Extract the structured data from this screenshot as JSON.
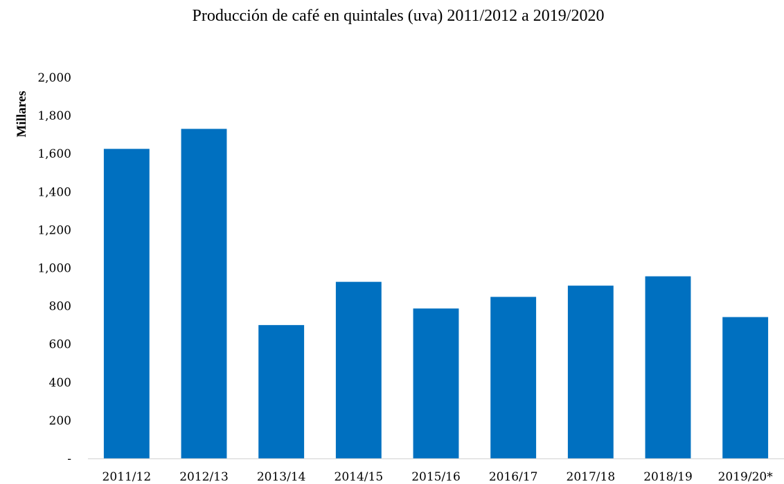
{
  "chart_data": {
    "type": "bar",
    "title": "Producción de café en quintales (uva) 2011/2012 a 2019/2020",
    "xlabel": "",
    "ylabel": "Millares",
    "categories": [
      "2011/12",
      "2012/13",
      "2013/14",
      "2014/15",
      "2015/16",
      "2016/17",
      "2017/18",
      "2018/19",
      "2019/20*"
    ],
    "values": [
      1625,
      1730,
      700,
      927,
      787,
      848,
      907,
      956,
      742
    ],
    "ylim": [
      0,
      2000
    ],
    "yticks": [
      0,
      200,
      400,
      600,
      800,
      1000,
      1200,
      1400,
      1600,
      1800,
      2000
    ],
    "ytick_labels": [
      "-",
      "200",
      "400",
      "600",
      "800",
      "1,000",
      "1,200",
      "1,400",
      "1,600",
      "1,800",
      "2,000"
    ],
    "grid": false,
    "legend": "none",
    "bar_color": "#0070C0"
  }
}
